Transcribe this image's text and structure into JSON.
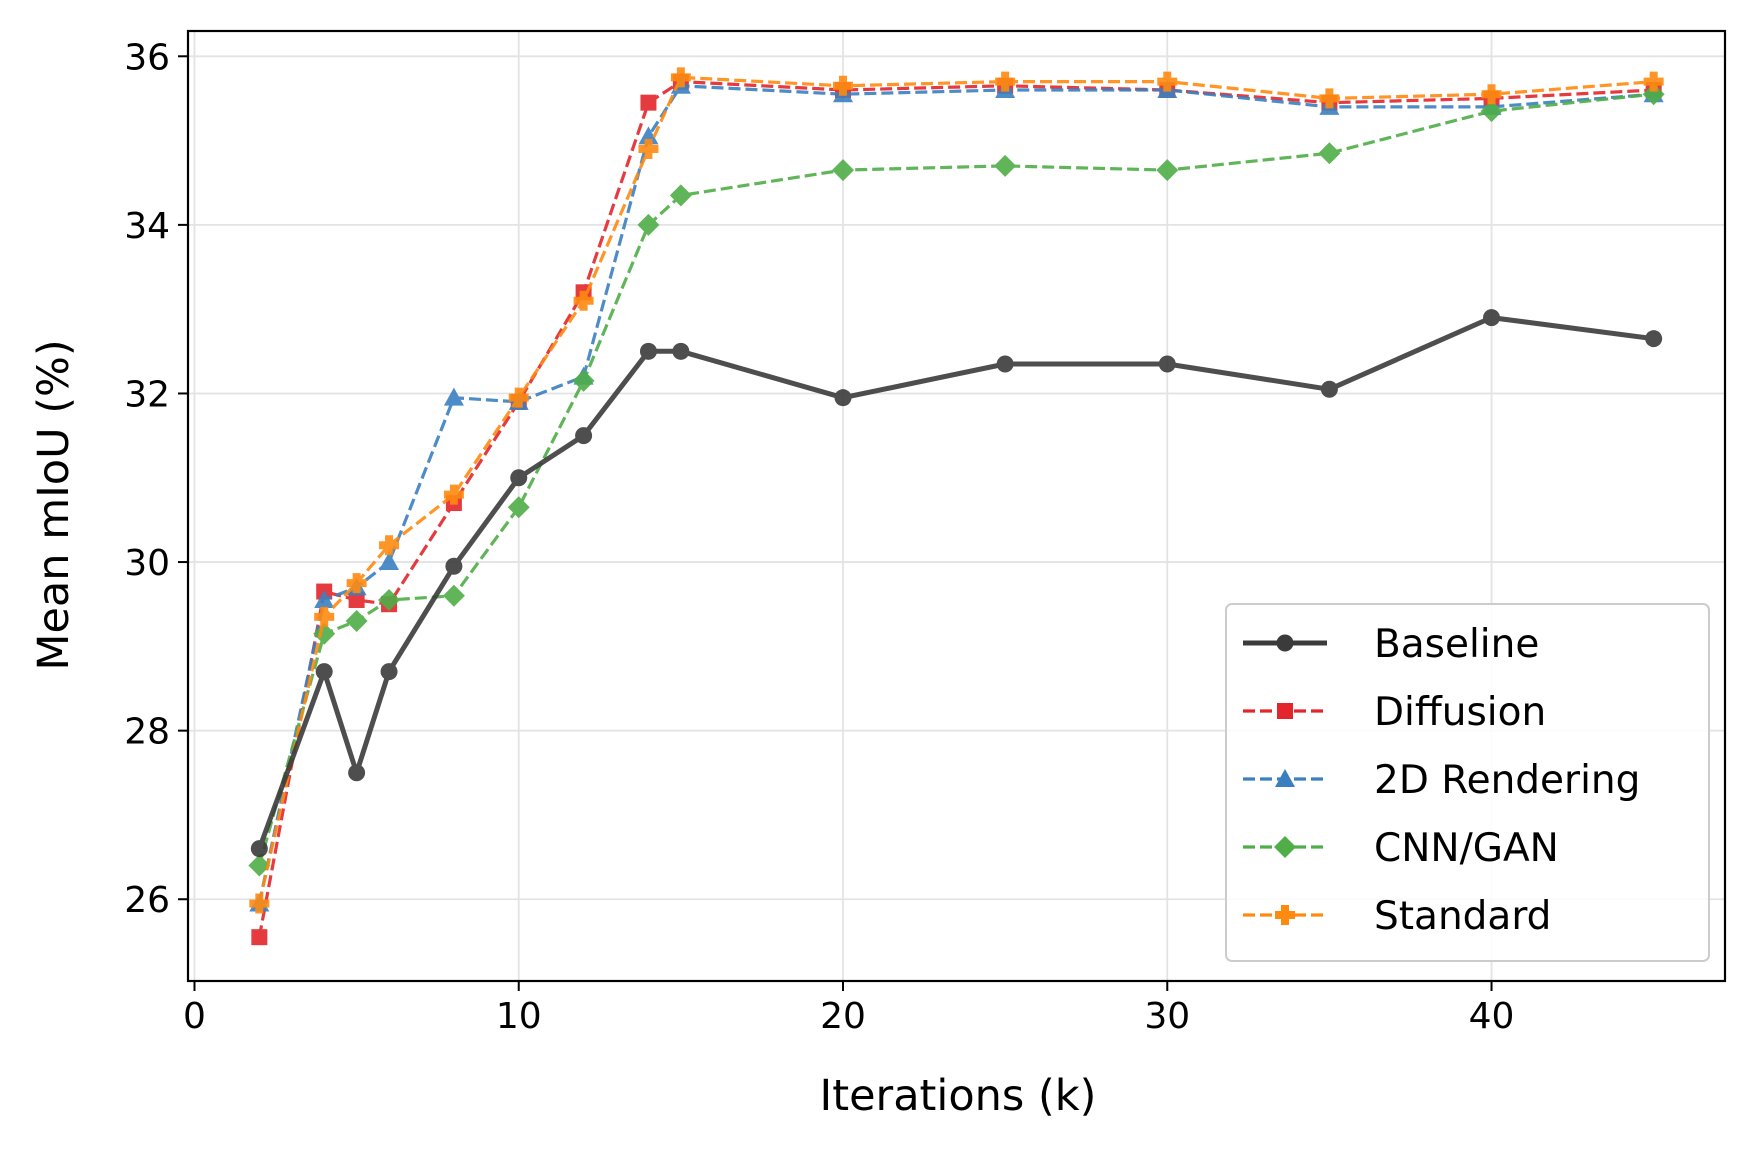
{
  "chart_data": {
    "type": "line",
    "xlabel": "Iterations (k)",
    "ylabel": "Mean mIoU (%)",
    "xlim": [
      -0.2,
      47.2
    ],
    "ylim": [
      25.03,
      36.3
    ],
    "xticks": [
      0,
      10,
      20,
      30,
      40
    ],
    "yticks": [
      26,
      28,
      30,
      32,
      34,
      36
    ],
    "grid": true,
    "legend_position": "lower-right",
    "x": [
      2,
      4,
      5,
      6,
      8,
      10,
      12,
      14,
      15,
      20,
      25,
      30,
      35,
      40,
      45
    ],
    "series": [
      {
        "name": "Baseline",
        "color": "#3b3b3b",
        "line_style": "solid",
        "marker": "circle",
        "values": [
          26.6,
          28.7,
          27.5,
          28.7,
          29.95,
          31.0,
          31.5,
          32.5,
          32.5,
          31.95,
          32.35,
          32.35,
          32.05,
          32.9,
          32.65
        ]
      },
      {
        "name": "Diffusion",
        "color": "#e3262b",
        "line_style": "dashed",
        "marker": "square",
        "values": [
          25.55,
          29.65,
          29.55,
          29.5,
          30.7,
          31.9,
          33.2,
          35.45,
          35.7,
          35.6,
          35.65,
          35.6,
          35.45,
          35.5,
          35.6
        ]
      },
      {
        "name": "2D Rendering",
        "color": "#3a80c0",
        "line_style": "dashed",
        "marker": "triangle",
        "values": [
          25.95,
          29.55,
          29.7,
          30.0,
          31.95,
          31.9,
          32.2,
          35.05,
          35.65,
          35.55,
          35.6,
          35.6,
          35.4,
          35.4,
          35.55
        ]
      },
      {
        "name": "CNN/GAN",
        "color": "#4fae48",
        "line_style": "dashed",
        "marker": "diamond",
        "values": [
          26.4,
          29.15,
          29.3,
          29.55,
          29.6,
          30.65,
          32.15,
          34.0,
          34.35,
          34.65,
          34.7,
          34.65,
          34.85,
          35.35,
          35.55
        ]
      },
      {
        "name": "Standard",
        "color": "#ff8a10",
        "line_style": "dashed",
        "marker": "plus",
        "values": [
          25.95,
          29.35,
          29.75,
          30.2,
          30.8,
          31.95,
          33.1,
          34.9,
          35.75,
          35.65,
          35.7,
          35.7,
          35.5,
          35.55,
          35.7
        ]
      }
    ]
  }
}
